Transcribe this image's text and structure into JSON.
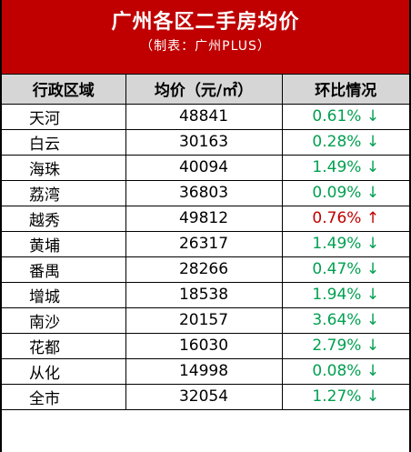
{
  "header": {
    "title": "广州各区二手房均价",
    "subtitle": "（制表：广州PLUS）"
  },
  "table": {
    "columns": [
      "行政区域",
      "均价（元/㎡）",
      "环比情况"
    ],
    "rows": [
      {
        "district": "天河",
        "price": "48841",
        "change": "0.61% ↓",
        "direction": "down"
      },
      {
        "district": "白云",
        "price": "30163",
        "change": "0.28% ↓",
        "direction": "down"
      },
      {
        "district": "海珠",
        "price": "40094",
        "change": "1.49% ↓",
        "direction": "down"
      },
      {
        "district": "荔湾",
        "price": "36803",
        "change": "0.09% ↓",
        "direction": "down"
      },
      {
        "district": "越秀",
        "price": "49812",
        "change": "0.76% ↑",
        "direction": "up"
      },
      {
        "district": "黄埔",
        "price": "26317",
        "change": "1.49% ↓",
        "direction": "down"
      },
      {
        "district": "番禺",
        "price": "28266",
        "change": "0.47% ↓",
        "direction": "down"
      },
      {
        "district": "增城",
        "price": "18538",
        "change": "1.94% ↓",
        "direction": "down"
      },
      {
        "district": "南沙",
        "price": "20157",
        "change": "3.64% ↓",
        "direction": "down"
      },
      {
        "district": "花都",
        "price": "16030",
        "change": "2.79% ↓",
        "direction": "down"
      },
      {
        "district": "从化",
        "price": "14998",
        "change": "0.08% ↓",
        "direction": "down"
      },
      {
        "district": "全市",
        "price": "32054",
        "change": "1.27% ↓",
        "direction": "down"
      }
    ]
  },
  "colors": {
    "header_bg": "#c00000",
    "column_header_bg": "#d6d6d6",
    "down": "#00a050",
    "up": "#c00000"
  }
}
